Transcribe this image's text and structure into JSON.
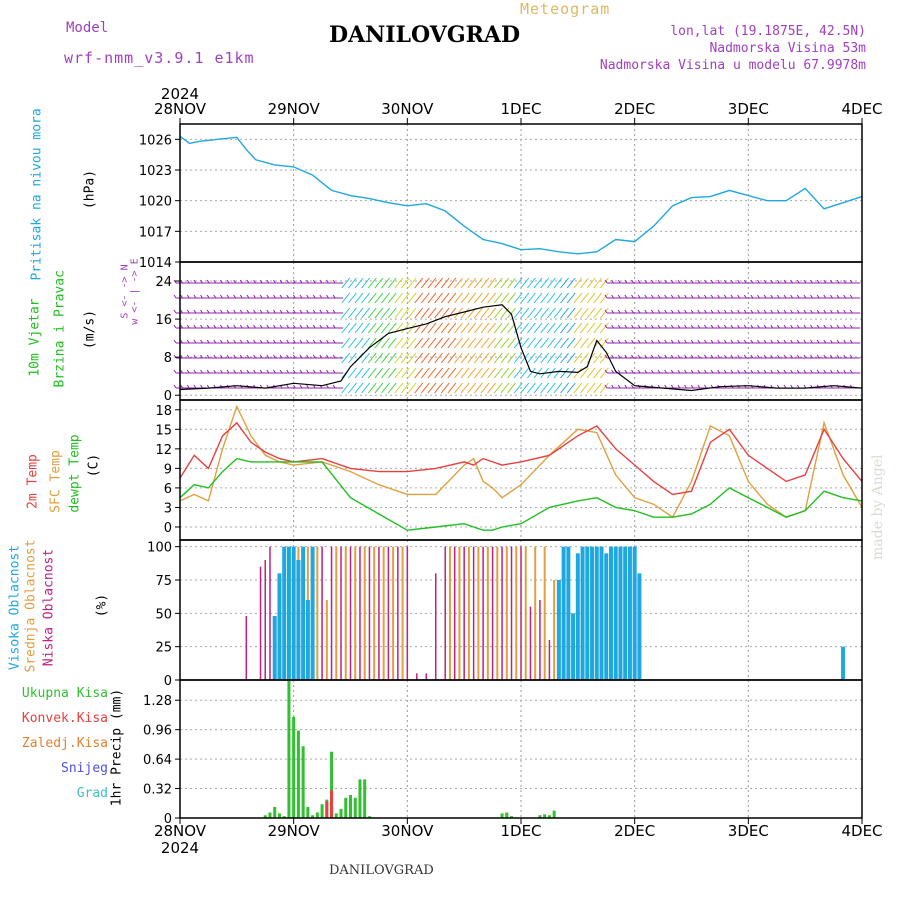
{
  "header": {
    "model_label": "Model",
    "model_name": "wrf-nmm_v3.9.1 e1km",
    "meteogram_label": "Meteogram",
    "station": "DANILOVGRAD",
    "lonlat": "lon,lat (19.1875E, 42.5N)",
    "altitude": "Nadmorska Visina 53m",
    "altitude_model": "Nadmorska Visina u modelu 67.9978m",
    "footer_station": "DANILOVGRAD",
    "watermark": "made by Angel"
  },
  "colors": {
    "pressure": "#1fa8e0",
    "t2m": "#e84040",
    "tsfc": "#e0a040",
    "dewpt": "#20c020",
    "cloud_high": "#1fa8e0",
    "cloud_mid": "#e0a040",
    "cloud_low": "#c02080",
    "precip_total": "#30c030",
    "precip_conv": "#e84040",
    "precip_frz": "#e08030",
    "snow": "#5050e0",
    "graupel": "#40c0c0",
    "wind_barb": "#9020b0"
  },
  "chart_data": [
    {
      "type": "line",
      "panel": "pressure",
      "ylabel_colored": "Pritisak na nivou mora",
      "ylabel_unit": "(hPa)",
      "ylim": [
        1014,
        1027.5
      ],
      "yticks": [
        "1026",
        "1023",
        "1020",
        "1017",
        "1014"
      ],
      "x_start_year": "2024",
      "xticks": [
        "28NOV",
        "29NOV",
        "30NOV",
        "1DEC",
        "2DEC",
        "3DEC",
        "4DEC"
      ],
      "x_hours": [
        0,
        2,
        4,
        8,
        12,
        14,
        16,
        20,
        24,
        28,
        32,
        36,
        40,
        44,
        48,
        52,
        56,
        60,
        64,
        68,
        72,
        76,
        80,
        84,
        88,
        92,
        96,
        100,
        104,
        108,
        112,
        116,
        120,
        124,
        128,
        132,
        136,
        140,
        144
      ],
      "series": [
        {
          "name": "slp",
          "values": [
            1026.3,
            1025.6,
            1025.8,
            1026.0,
            1026.2,
            1025.0,
            1024.0,
            1023.5,
            1023.3,
            1022.5,
            1021.0,
            1020.5,
            1020.2,
            1019.8,
            1019.5,
            1019.7,
            1019.0,
            1017.5,
            1016.2,
            1015.8,
            1015.2,
            1015.3,
            1015.0,
            1014.8,
            1015.0,
            1016.2,
            1016.0,
            1017.5,
            1019.5,
            1020.3,
            1020.4,
            1021.0,
            1020.5,
            1020.0,
            1020.0,
            1021.2,
            1019.2,
            1019.8,
            1020.4
          ]
        }
      ]
    },
    {
      "type": "line",
      "panel": "wind",
      "ylabel_colored": "10m Vjetar",
      "ylabel_colored2": "Brzina i Pravac",
      "ylabel_unit": "(m/s)",
      "compass": "w <- | -> E",
      "compass_ns": "S <- -> N",
      "ylim": [
        -1,
        28
      ],
      "yticks": [
        "24",
        "16",
        "8",
        "0"
      ],
      "x_hours": [
        0,
        6,
        12,
        18,
        24,
        30,
        34,
        36,
        40,
        44,
        48,
        52,
        56,
        60,
        64,
        68,
        70,
        72,
        74,
        76,
        80,
        84,
        86,
        88,
        90,
        92,
        96,
        102,
        108,
        114,
        120,
        126,
        132,
        138,
        144
      ],
      "series": [
        {
          "name": "speed",
          "values": [
            1.2,
            1.5,
            2.0,
            1.5,
            2.5,
            2.0,
            3.0,
            6.0,
            10.0,
            13.0,
            14.0,
            15.0,
            16.5,
            17.5,
            18.5,
            19.0,
            17.0,
            10.0,
            5.0,
            4.5,
            5.0,
            4.8,
            6.0,
            11.5,
            9.0,
            5.0,
            2.0,
            1.5,
            1.0,
            1.8,
            2.0,
            1.5,
            1.5,
            2.0,
            1.5
          ]
        }
      ]
    },
    {
      "type": "line",
      "panel": "temperature",
      "ylabel_t2m": "2m Temp",
      "ylabel_tsfc": "SFC Temp",
      "ylabel_dewpt": "dewpt Temp",
      "ylabel_unit": "(C)",
      "ylim": [
        -2,
        19.5
      ],
      "yticks": [
        "18",
        "15",
        "12",
        "9",
        "6",
        "3",
        "0"
      ],
      "x_hours": [
        0,
        3,
        6,
        9,
        12,
        15,
        18,
        21,
        24,
        30,
        36,
        42,
        48,
        54,
        60,
        62,
        64,
        66,
        68,
        72,
        78,
        84,
        88,
        92,
        96,
        100,
        104,
        108,
        112,
        116,
        120,
        124,
        128,
        132,
        136,
        140,
        144
      ],
      "series": [
        {
          "name": "t2m",
          "values": [
            7.5,
            11.0,
            9.0,
            14.0,
            16.0,
            13.0,
            11.5,
            10.5,
            10.0,
            10.5,
            9.0,
            8.5,
            8.5,
            9.0,
            10.0,
            9.5,
            10.5,
            10.0,
            9.5,
            10.0,
            11.0,
            14.0,
            15.5,
            12.0,
            9.5,
            7.0,
            5.0,
            5.5,
            13.0,
            15.0,
            11.0,
            9.0,
            7.0,
            8.0,
            15.0,
            10.5,
            7.0
          ]
        },
        {
          "name": "tsfc",
          "values": [
            4.0,
            5.0,
            4.0,
            12.0,
            18.5,
            14.0,
            11.0,
            10.0,
            9.5,
            10.0,
            8.5,
            6.5,
            5.0,
            5.0,
            9.5,
            10.5,
            7.0,
            6.0,
            4.5,
            6.5,
            11.0,
            15.0,
            14.5,
            8.0,
            4.5,
            3.5,
            1.5,
            7.0,
            15.5,
            14.0,
            7.0,
            3.5,
            1.5,
            2.5,
            16.0,
            8.0,
            3.0
          ]
        },
        {
          "name": "dewpt",
          "values": [
            4.5,
            6.5,
            6.0,
            8.5,
            10.5,
            10.0,
            10.0,
            10.0,
            10.0,
            10.0,
            4.5,
            2.0,
            -0.5,
            0.0,
            0.5,
            0.0,
            -0.5,
            -0.5,
            0.0,
            0.5,
            3.0,
            4.0,
            4.5,
            3.0,
            2.5,
            1.5,
            1.5,
            2.0,
            3.5,
            6.0,
            4.5,
            3.0,
            1.5,
            2.5,
            5.5,
            4.5,
            4.0
          ]
        }
      ]
    },
    {
      "type": "bar",
      "panel": "cloud",
      "ylabel_high": "Visoka Oblacnost",
      "ylabel_mid": "Srednja Oblacnost",
      "ylabel_low": "Niska Oblacnost",
      "ylabel_unit": "(%)",
      "ylim": [
        0,
        105
      ],
      "yticks": [
        "100",
        "75",
        "50",
        "25",
        "0"
      ],
      "series": [
        {
          "name": "high",
          "hours": [
            20,
            21,
            22,
            23,
            24,
            25,
            26,
            27,
            28,
            80,
            81,
            82,
            83,
            84,
            85,
            86,
            87,
            88,
            89,
            90,
            91,
            92,
            93,
            94,
            95,
            96,
            97,
            140
          ],
          "values": [
            48,
            80,
            100,
            100,
            100,
            90,
            100,
            60,
            100,
            75,
            100,
            100,
            50,
            95,
            100,
            100,
            100,
            100,
            100,
            95,
            100,
            100,
            100,
            100,
            100,
            100,
            80,
            25
          ]
        },
        {
          "name": "mid",
          "hours": [
            24,
            25,
            27,
            29,
            31,
            33,
            35,
            37,
            39,
            41,
            43,
            45,
            47,
            57,
            59,
            61,
            63,
            65,
            67,
            69,
            71,
            73,
            75,
            77,
            79,
            84,
            86,
            88,
            90
          ],
          "values": [
            95,
            100,
            100,
            100,
            60,
            100,
            100,
            100,
            100,
            100,
            100,
            100,
            100,
            100,
            100,
            100,
            100,
            100,
            100,
            100,
            100,
            100,
            100,
            100,
            75,
            55,
            60,
            50,
            40
          ]
        },
        {
          "name": "low",
          "hours": [
            14,
            17,
            18,
            19,
            26,
            30,
            32,
            34,
            36,
            38,
            40,
            42,
            44,
            46,
            48,
            50,
            52,
            54,
            56,
            58,
            60,
            62,
            64,
            66,
            68,
            70,
            72,
            74,
            76,
            78
          ],
          "values": [
            48,
            85,
            90,
            100,
            75,
            100,
            100,
            100,
            100,
            100,
            100,
            100,
            100,
            100,
            100,
            5,
            5,
            80,
            100,
            100,
            100,
            100,
            100,
            100,
            100,
            100,
            100,
            55,
            60,
            30
          ]
        }
      ]
    },
    {
      "type": "bar",
      "panel": "precip",
      "ylabel_total": "Ukupna Kisa",
      "ylabel_conv": "Konvek.Kisa",
      "ylabel_frz": "Zaledj.Kisa",
      "ylabel_snow": "Snijeg",
      "ylabel_grad": "Grad",
      "ylabel_unit": "1hr Precip (mm)",
      "ylim": [
        0,
        1.5
      ],
      "yticks": [
        "1.28",
        "0.96",
        "0.64",
        "0.32",
        "0"
      ],
      "x_start_year": "2024",
      "xticks": [
        "28NOV",
        "29NOV",
        "30NOV",
        "1DEC",
        "2DEC",
        "3DEC",
        "4DEC"
      ],
      "series": [
        {
          "name": "total",
          "hours": [
            18,
            19,
            20,
            21,
            22,
            23,
            24,
            25,
            26,
            27,
            28,
            29,
            30,
            31,
            32,
            33,
            34,
            35,
            36,
            37,
            38,
            39,
            40,
            68,
            69,
            70,
            76,
            77,
            78,
            79
          ],
          "values": [
            0.03,
            0.06,
            0.12,
            0.05,
            0.02,
            1.5,
            1.1,
            0.95,
            0.78,
            0.12,
            0.03,
            0.06,
            0.15,
            0.2,
            0.72,
            0.05,
            0.1,
            0.22,
            0.25,
            0.22,
            0.42,
            0.42,
            0.02,
            0.05,
            0.06,
            0.02,
            0.03,
            0.04,
            0.03,
            0.08
          ]
        },
        {
          "name": "conv",
          "hours": [
            31,
            32
          ],
          "values": [
            0.18,
            0.3
          ]
        }
      ]
    }
  ]
}
